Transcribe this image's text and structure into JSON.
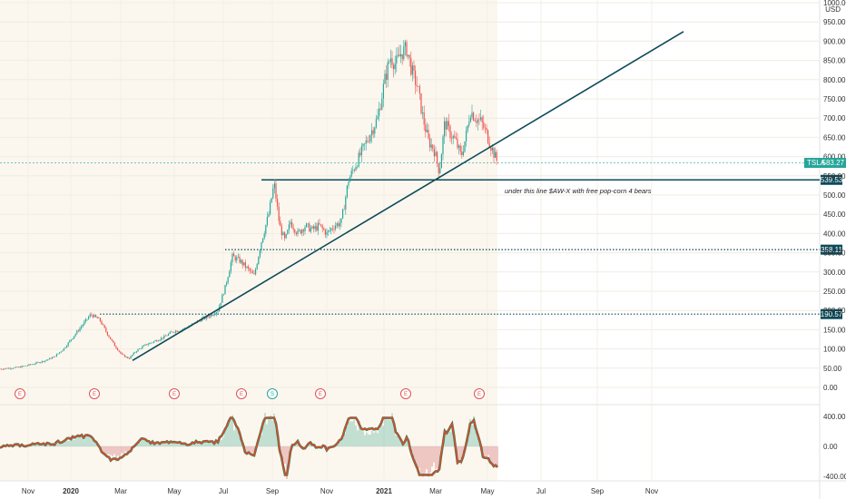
{
  "chart_data": {
    "type": "candlestick",
    "symbol": "TSLA",
    "currency": "USD",
    "price_axis": {
      "ticks": [
        "1000.00",
        "950.00",
        "900.00",
        "850.00",
        "800.00",
        "750.00",
        "700.00",
        "650.00",
        "600.00",
        "550.00",
        "500.00",
        "450.00",
        "400.00",
        "350.00",
        "300.00",
        "250.00",
        "200.00",
        "150.00",
        "100.00",
        "50.00",
        "0.00"
      ],
      "ylim": [
        0,
        1000
      ]
    },
    "time_axis": {
      "ticks": [
        "Nov",
        "2020",
        "Mar",
        "May",
        "Jul",
        "Sep",
        "Nov",
        "2021",
        "Mar",
        "May",
        "Jul",
        "Sep",
        "Nov"
      ]
    },
    "last_price": {
      "symbol_label": "TSLA",
      "value": "583.27",
      "y": 583.27
    },
    "levels": [
      {
        "label": "539.53",
        "y": 539.53,
        "style": "solid"
      },
      {
        "label": "358.11",
        "y": 358.11,
        "style": "dotted"
      },
      {
        "label": "190.57",
        "y": 190.57,
        "style": "dotted"
      }
    ],
    "trendline": {
      "from": {
        "date": "2020-03",
        "y": 70
      },
      "to": {
        "date": "2021-11",
        "y": 925
      }
    },
    "annotation": "under this line $AW-X with free pop-corn 4 bears",
    "earnings_markers": [
      {
        "label": "E",
        "color": "#e05252"
      },
      {
        "label": "E",
        "color": "#e05252"
      },
      {
        "label": "E",
        "color": "#e05252"
      },
      {
        "label": "E",
        "color": "#e05252"
      },
      {
        "label": "S",
        "color": "#26a69a"
      },
      {
        "label": "E",
        "color": "#e05252"
      },
      {
        "label": "E",
        "color": "#e05252"
      },
      {
        "label": "E",
        "color": "#e05252"
      }
    ],
    "price_path": [
      [
        0,
        48
      ],
      [
        20,
        52
      ],
      [
        35,
        60
      ],
      [
        50,
        70
      ],
      [
        60,
        80
      ],
      [
        70,
        100
      ],
      [
        80,
        130
      ],
      [
        90,
        160
      ],
      [
        100,
        190
      ],
      [
        110,
        175
      ],
      [
        118,
        140
      ],
      [
        126,
        110
      ],
      [
        134,
        85
      ],
      [
        142,
        75
      ],
      [
        150,
        95
      ],
      [
        160,
        110
      ],
      [
        170,
        120
      ],
      [
        180,
        130
      ],
      [
        190,
        145
      ],
      [
        200,
        150
      ],
      [
        210,
        160
      ],
      [
        220,
        175
      ],
      [
        230,
        185
      ],
      [
        240,
        200
      ],
      [
        248,
        260
      ],
      [
        256,
        340
      ],
      [
        264,
        330
      ],
      [
        272,
        310
      ],
      [
        280,
        290
      ],
      [
        288,
        380
      ],
      [
        296,
        450
      ],
      [
        302,
        530
      ],
      [
        308,
        420
      ],
      [
        314,
        380
      ],
      [
        320,
        430
      ],
      [
        328,
        400
      ],
      [
        336,
        420
      ],
      [
        344,
        410
      ],
      [
        352,
        420
      ],
      [
        360,
        400
      ],
      [
        368,
        420
      ],
      [
        376,
        430
      ],
      [
        384,
        540
      ],
      [
        392,
        580
      ],
      [
        400,
        620
      ],
      [
        408,
        660
      ],
      [
        416,
        700
      ],
      [
        424,
        800
      ],
      [
        430,
        860
      ],
      [
        436,
        840
      ],
      [
        442,
        870
      ],
      [
        448,
        880
      ],
      [
        454,
        820
      ],
      [
        460,
        780
      ],
      [
        466,
        700
      ],
      [
        472,
        640
      ],
      [
        478,
        620
      ],
      [
        484,
        560
      ],
      [
        490,
        690
      ],
      [
        496,
        660
      ],
      [
        502,
        640
      ],
      [
        508,
        600
      ],
      [
        514,
        660
      ],
      [
        518,
        720
      ],
      [
        524,
        700
      ],
      [
        530,
        690
      ],
      [
        536,
        660
      ],
      [
        542,
        620
      ],
      [
        548,
        585
      ]
    ],
    "oscillator": {
      "ticks": [
        "400.00",
        "0.00",
        "-400.00"
      ],
      "ylim": [
        -400,
        400
      ]
    }
  }
}
